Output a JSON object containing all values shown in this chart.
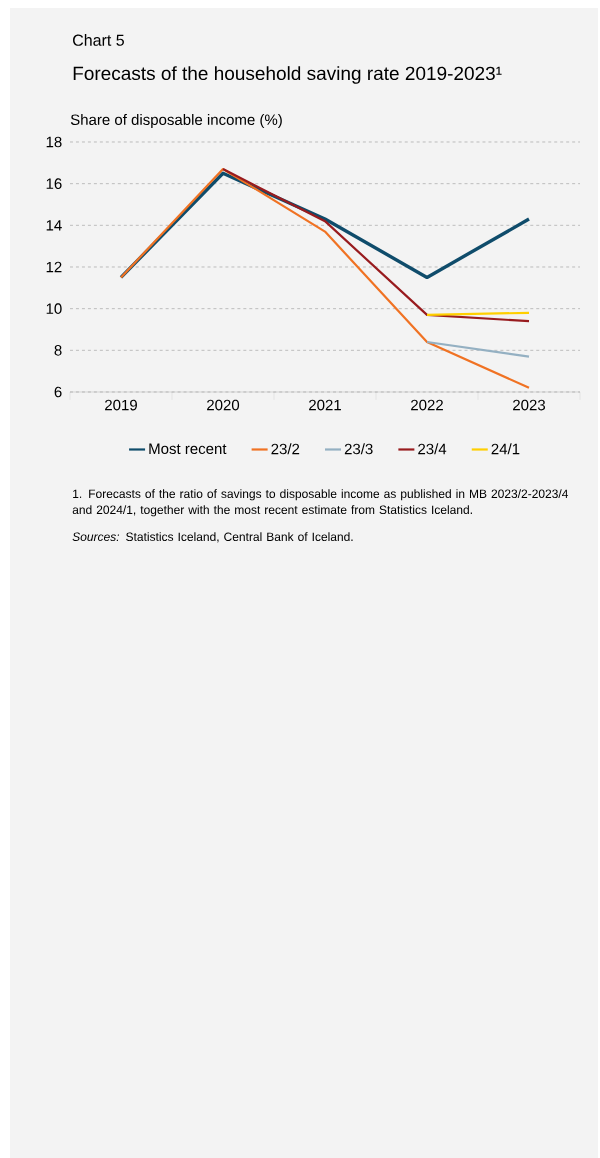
{
  "chart_data": {
    "type": "line",
    "title": "Chart 5",
    "subtitle": "Forecasts of the household saving rate 2019-2023¹",
    "ylabel": "Share of disposable income (%)",
    "categories": [
      "2019",
      "2020",
      "2021",
      "2022",
      "2023"
    ],
    "series": [
      {
        "name": "Most recent",
        "color": "#0f4c6b",
        "values": [
          11.5,
          16.5,
          14.3,
          11.5,
          14.3
        ]
      },
      {
        "name": "23/2",
        "color": "#f07223",
        "values": [
          11.5,
          16.7,
          13.7,
          8.4,
          6.2
        ]
      },
      {
        "name": "23/3",
        "color": "#94b0c2",
        "values": [
          null,
          null,
          null,
          8.4,
          7.7
        ]
      },
      {
        "name": "23/4",
        "color": "#981b1e",
        "values": [
          null,
          16.7,
          14.2,
          9.7,
          9.4
        ]
      },
      {
        "name": "24/1",
        "color": "#ffcf00",
        "values": [
          null,
          null,
          null,
          9.7,
          9.8
        ]
      }
    ],
    "ylim": [
      6,
      18
    ],
    "yticks": [
      6,
      8,
      10,
      12,
      14,
      16,
      18
    ],
    "grid": "y",
    "legend": "bottom",
    "line_style": "solid",
    "annotations": [
      "1. Forecasts of the ratio of savings to disposable income as published in MB 2023/2-2023/4 and 2024/1, together with the most recent estimate from Statistics Iceland.",
      "*Sources:* Statistics Iceland, Central Bank of Iceland."
    ]
  }
}
